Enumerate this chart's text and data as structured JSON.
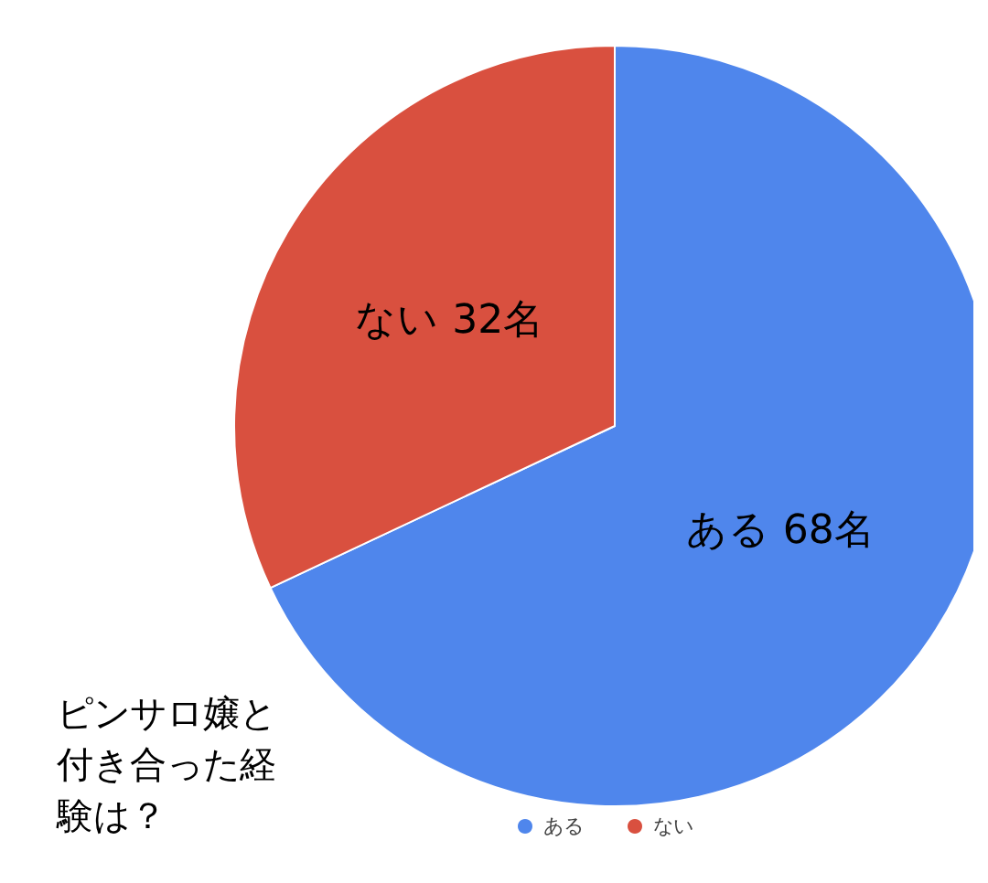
{
  "chart_data": {
    "type": "pie",
    "title": "ピンサロ嬢と付き合った経験は？",
    "categories": [
      "ある",
      "ない"
    ],
    "values": [
      68,
      32
    ],
    "colors": [
      "#4f86ec",
      "#d9503f"
    ],
    "value_labels": [
      "ある 68名",
      "ない 32名"
    ],
    "legend": "bottom"
  }
}
